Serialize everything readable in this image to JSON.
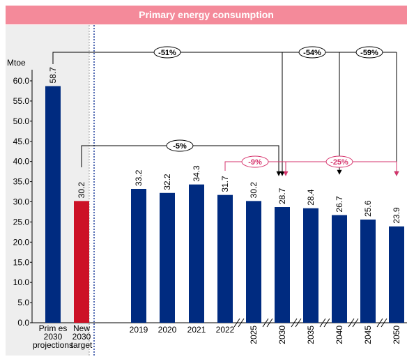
{
  "chart_data": {
    "type": "bar",
    "title": "Primary energy consumption",
    "y_label": "Mtoe",
    "categories": [
      "Prim es\n2030\nprojections",
      "New\n2030\ntarget",
      "2019",
      "2020",
      "2021",
      "2022",
      "2025",
      "2030",
      "2035",
      "2040",
      "2045",
      "2050"
    ],
    "values": [
      58.7,
      30.2,
      33.2,
      32.2,
      34.3,
      31.7,
      30.2,
      28.7,
      28.4,
      26.7,
      25.6,
      23.9
    ],
    "colors": [
      "#002b80",
      "#cc1126",
      "#002b80",
      "#002b80",
      "#002b80",
      "#002b80",
      "#002b80",
      "#002b80",
      "#002b80",
      "#002b80",
      "#002b80",
      "#002b80"
    ],
    "ylim": [
      0,
      60
    ],
    "yticks": [
      {
        "value": 0,
        "label": "0.0"
      },
      {
        "value": 5,
        "label": "5.0"
      },
      {
        "value": 10,
        "label": "10.0"
      },
      {
        "value": 15,
        "label": "15.0"
      },
      {
        "value": 20,
        "label": "20.0"
      },
      {
        "value": 25,
        "label": "25.0"
      },
      {
        "value": 30,
        "label": "30.0"
      },
      {
        "value": 35,
        "label": "35.0"
      },
      {
        "value": 40,
        "label": "40.0"
      },
      {
        "value": 45,
        "label": "45.0"
      },
      {
        "value": 50,
        "label": "50.0"
      },
      {
        "value": 55,
        "label": "55.0"
      },
      {
        "value": 60,
        "label": "60.0"
      }
    ],
    "annotations": [
      {
        "text": "-51%",
        "color": "#000000"
      },
      {
        "text": "-54%",
        "color": "#000000"
      },
      {
        "text": "-59%",
        "color": "#000000"
      },
      {
        "text": "-5%",
        "color": "#000000"
      },
      {
        "text": "-9%",
        "color": "#d6336c"
      },
      {
        "text": "-25%",
        "color": "#d6336c"
      }
    ]
  }
}
